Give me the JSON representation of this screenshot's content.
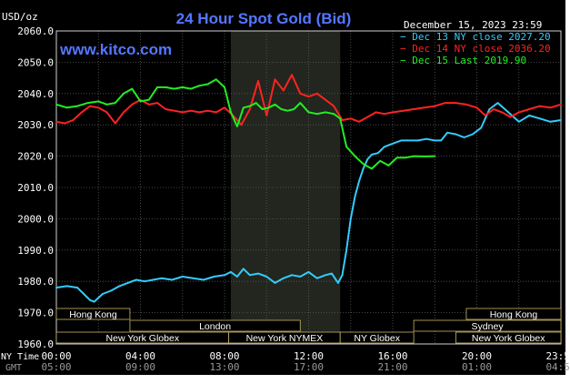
{
  "chart_data": {
    "type": "line",
    "title": "24 Hour Spot Gold (Bid)",
    "watermark": "www.kitco.com",
    "date": "December 15, 2023 23:59",
    "ylabel": "USD/oz",
    "ylim": [
      1960,
      2060
    ],
    "yticks": [
      "1960.0",
      "1970.0",
      "1980.0",
      "1990.0",
      "2000.0",
      "2010.0",
      "2020.0",
      "2030.0",
      "2040.0",
      "2050.0",
      "2060.0"
    ],
    "xlim": [
      0,
      24
    ],
    "ny_time_label": "NY Time",
    "gmt_label": "GMT",
    "ny_ticks": [
      {
        "h": 0,
        "label": "00:00"
      },
      {
        "h": 4,
        "label": "04:00"
      },
      {
        "h": 8,
        "label": "08:00"
      },
      {
        "h": 12,
        "label": "12:00"
      },
      {
        "h": 16,
        "label": "16:00"
      },
      {
        "h": 20,
        "label": "20:00"
      },
      {
        "h": 24,
        "label": "23:59"
      }
    ],
    "gmt_ticks": [
      {
        "h": 0,
        "label": "05:00"
      },
      {
        "h": 4,
        "label": "09:00"
      },
      {
        "h": 8,
        "label": "13:00"
      },
      {
        "h": 12,
        "label": "17:00"
      },
      {
        "h": 16,
        "label": "21:00"
      },
      {
        "h": 20,
        "label": "01:00"
      },
      {
        "h": 24,
        "label": "04:59"
      }
    ],
    "shaded_region": [
      8.3,
      13.5
    ],
    "grid": true,
    "legend_position": "top-right",
    "sessions": [
      {
        "label": "Hong Kong",
        "row": 0,
        "h0": 0,
        "h1": 3.5
      },
      {
        "label": "London",
        "row": 1,
        "h0": 3.5,
        "h1": 11.6
      },
      {
        "label": "New York Globex",
        "row": 2,
        "h0": 0,
        "h1": 8.2
      },
      {
        "label": "New York NYMEX",
        "row": 2,
        "h0": 8.2,
        "h1": 13.5
      },
      {
        "label": "NY Globex",
        "row": 2,
        "h0": 13.5,
        "h1": 17.0
      },
      {
        "label": "Hong Kong",
        "row": 0,
        "h0": 19.5,
        "h1": 24
      },
      {
        "label": "Sydney",
        "row": 1,
        "h0": 17.0,
        "h1": 24
      },
      {
        "label": "New York Globex",
        "row": 2,
        "h0": 19.0,
        "h1": 24
      }
    ],
    "series": [
      {
        "name": "Dec 13 NY close 2027.20",
        "color": "#33ccff",
        "x": [
          0,
          0.5,
          1,
          1.3,
          1.6,
          1.8,
          2.2,
          2.6,
          3.0,
          3.4,
          3.8,
          4.2,
          4.6,
          5.0,
          5.5,
          6.0,
          6.5,
          7.0,
          7.5,
          8.0,
          8.3,
          8.6,
          8.9,
          9.2,
          9.6,
          10.0,
          10.4,
          10.8,
          11.2,
          11.6,
          12.0,
          12.4,
          12.8,
          13.1,
          13.4,
          13.6,
          13.8,
          14.0,
          14.2,
          14.4,
          14.6,
          14.8,
          15.0,
          15.3,
          15.6,
          16.0,
          16.4,
          16.8,
          17.2,
          17.6,
          18.0,
          18.3,
          18.6,
          19.0,
          19.4,
          19.8,
          20.2,
          20.6,
          21.0,
          21.5,
          22.0,
          22.5,
          23.0,
          23.5,
          24
        ],
        "values": [
          1978,
          1978.5,
          1978,
          1976,
          1974,
          1973.5,
          1976,
          1977,
          1978.5,
          1979.5,
          1980.5,
          1980,
          1980.5,
          1981,
          1980.5,
          1981.5,
          1981,
          1980.5,
          1981.5,
          1982,
          1983,
          1981.5,
          1984,
          1982,
          1982.5,
          1981.5,
          1979.5,
          1981,
          1982,
          1981.5,
          1983,
          1981,
          1982,
          1982.5,
          1979.5,
          1982,
          1990,
          2000,
          2007,
          2012,
          2016,
          2019,
          2020.5,
          2021,
          2023,
          2024,
          2025,
          2025,
          2025,
          2025.5,
          2025,
          2025,
          2027.5,
          2027,
          2026,
          2027,
          2029,
          2035,
          2037,
          2034,
          2031,
          2033,
          2032,
          2031,
          2031.5
        ]
      },
      {
        "name": "Dec 14 NY close 2036.20",
        "color": "#ff2222",
        "x": [
          0,
          0.4,
          0.8,
          1.2,
          1.6,
          2.0,
          2.4,
          2.8,
          3.2,
          3.6,
          4.0,
          4.4,
          4.8,
          5.2,
          5.6,
          6.0,
          6.4,
          6.8,
          7.2,
          7.6,
          8.0,
          8.4,
          8.8,
          9.2,
          9.6,
          10.0,
          10.4,
          10.8,
          11.2,
          11.6,
          12.0,
          12.4,
          12.8,
          13.2,
          13.6,
          14.0,
          14.4,
          14.8,
          15.2,
          15.6,
          16.0,
          16.5,
          17.0,
          17.5,
          18.0,
          18.5,
          19.0,
          19.5,
          20.0,
          20.4,
          20.8,
          21.2,
          21.6,
          22.0,
          22.5,
          23.0,
          23.5,
          24
        ],
        "values": [
          2031,
          2030.5,
          2031.5,
          2034,
          2036,
          2035.5,
          2034,
          2030.5,
          2034,
          2036.5,
          2038,
          2036.5,
          2037,
          2035,
          2034.5,
          2034,
          2034.5,
          2034,
          2034.5,
          2034,
          2035.5,
          2033,
          2030,
          2035,
          2044,
          2033,
          2044.5,
          2041,
          2046,
          2040,
          2039,
          2040,
          2038,
          2036,
          2031.5,
          2032,
          2031,
          2032.5,
          2034,
          2033.5,
          2034,
          2034.5,
          2035,
          2035.5,
          2036,
          2037,
          2037,
          2036.5,
          2035.5,
          2033,
          2035,
          2034,
          2032.5,
          2034,
          2035,
          2036,
          2035.5,
          2036.5
        ]
      },
      {
        "name": "Dec 15 Last 2019.90",
        "color": "#22ee22",
        "x": [
          0,
          0.5,
          1.0,
          1.5,
          2.0,
          2.4,
          2.8,
          3.2,
          3.6,
          4.0,
          4.4,
          4.8,
          5.2,
          5.6,
          6.0,
          6.4,
          6.8,
          7.2,
          7.6,
          8.0,
          8.3,
          8.6,
          8.9,
          9.2,
          9.5,
          9.8,
          10.1,
          10.4,
          10.7,
          11.0,
          11.3,
          11.6,
          12.0,
          12.4,
          12.8,
          13.2,
          13.5,
          13.8,
          14.2,
          14.6,
          15.0,
          15.4,
          15.8,
          16.2,
          16.6,
          17.0,
          17.5,
          18.0
        ],
        "values": [
          2036.5,
          2035.5,
          2036,
          2037,
          2037.5,
          2036.5,
          2037,
          2040,
          2041.5,
          2037.5,
          2038,
          2042,
          2042,
          2041.5,
          2042,
          2041.5,
          2042.5,
          2043,
          2044.5,
          2042,
          2034,
          2029.5,
          2035.5,
          2036,
          2037,
          2035,
          2035.5,
          2036.5,
          2035,
          2034.5,
          2035,
          2037,
          2034,
          2033.5,
          2034,
          2033.5,
          2032,
          2023,
          2020,
          2017.5,
          2016,
          2018.5,
          2017,
          2019.5,
          2019.5,
          2020,
          2019.9,
          2020
        ]
      }
    ]
  }
}
